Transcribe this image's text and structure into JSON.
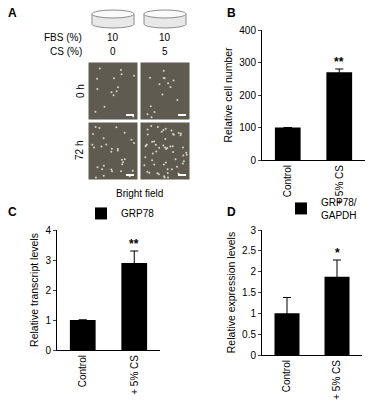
{
  "figure_a": {
    "label": "A",
    "conditions": [
      {
        "label": "FBS (%)",
        "values": [
          "10",
          "10"
        ]
      },
      {
        "label": "CS (%)",
        "values": [
          "0",
          "5"
        ]
      }
    ],
    "time_points": [
      "0 h",
      "72 h"
    ],
    "caption": "Bright field"
  },
  "chart_data": [
    {
      "type": "bar",
      "title": "B",
      "categories": [
        "Control",
        "+ 5% CS"
      ],
      "series": [
        {
          "color": "#000000",
          "values": [
            100,
            270
          ],
          "errors": [
            0,
            10
          ]
        }
      ],
      "ylabel": "Relative cell number",
      "ylim": [
        0,
        400
      ],
      "yticks": [
        0,
        100,
        200,
        300,
        400
      ],
      "annotations": [
        {
          "text": "**",
          "category": "+ 5% CS"
        }
      ],
      "grid": false
    },
    {
      "type": "bar",
      "title": "C",
      "categories": [
        "Control",
        "+ 5% CS"
      ],
      "series": [
        {
          "name": "GRP78",
          "color": "#000000",
          "values": [
            1,
            2.9
          ],
          "errors": [
            0,
            0.4
          ]
        }
      ],
      "ylabel": "Relative transcript levels",
      "ylim": [
        0,
        4
      ],
      "yticks": [
        0,
        1,
        2,
        3,
        4
      ],
      "annotations": [
        {
          "text": "**",
          "category": "+ 5% CS"
        }
      ],
      "grid": false,
      "legend": "top right"
    },
    {
      "type": "bar",
      "title": "D",
      "categories": [
        "Control",
        "+ 5% CS"
      ],
      "series": [
        {
          "name": "GRP78/\nGAPDH",
          "color": "#000000",
          "values": [
            1,
            1.88
          ],
          "errors": [
            0.38,
            0.4
          ]
        }
      ],
      "ylabel": "Relative expression levels",
      "ylim": [
        0,
        3
      ],
      "yticks": [
        0,
        0.5,
        1,
        1.5,
        2,
        2.5,
        3
      ],
      "annotations": [
        {
          "text": "*",
          "category": "+ 5% CS"
        }
      ],
      "grid": false,
      "legend": "top right"
    }
  ]
}
